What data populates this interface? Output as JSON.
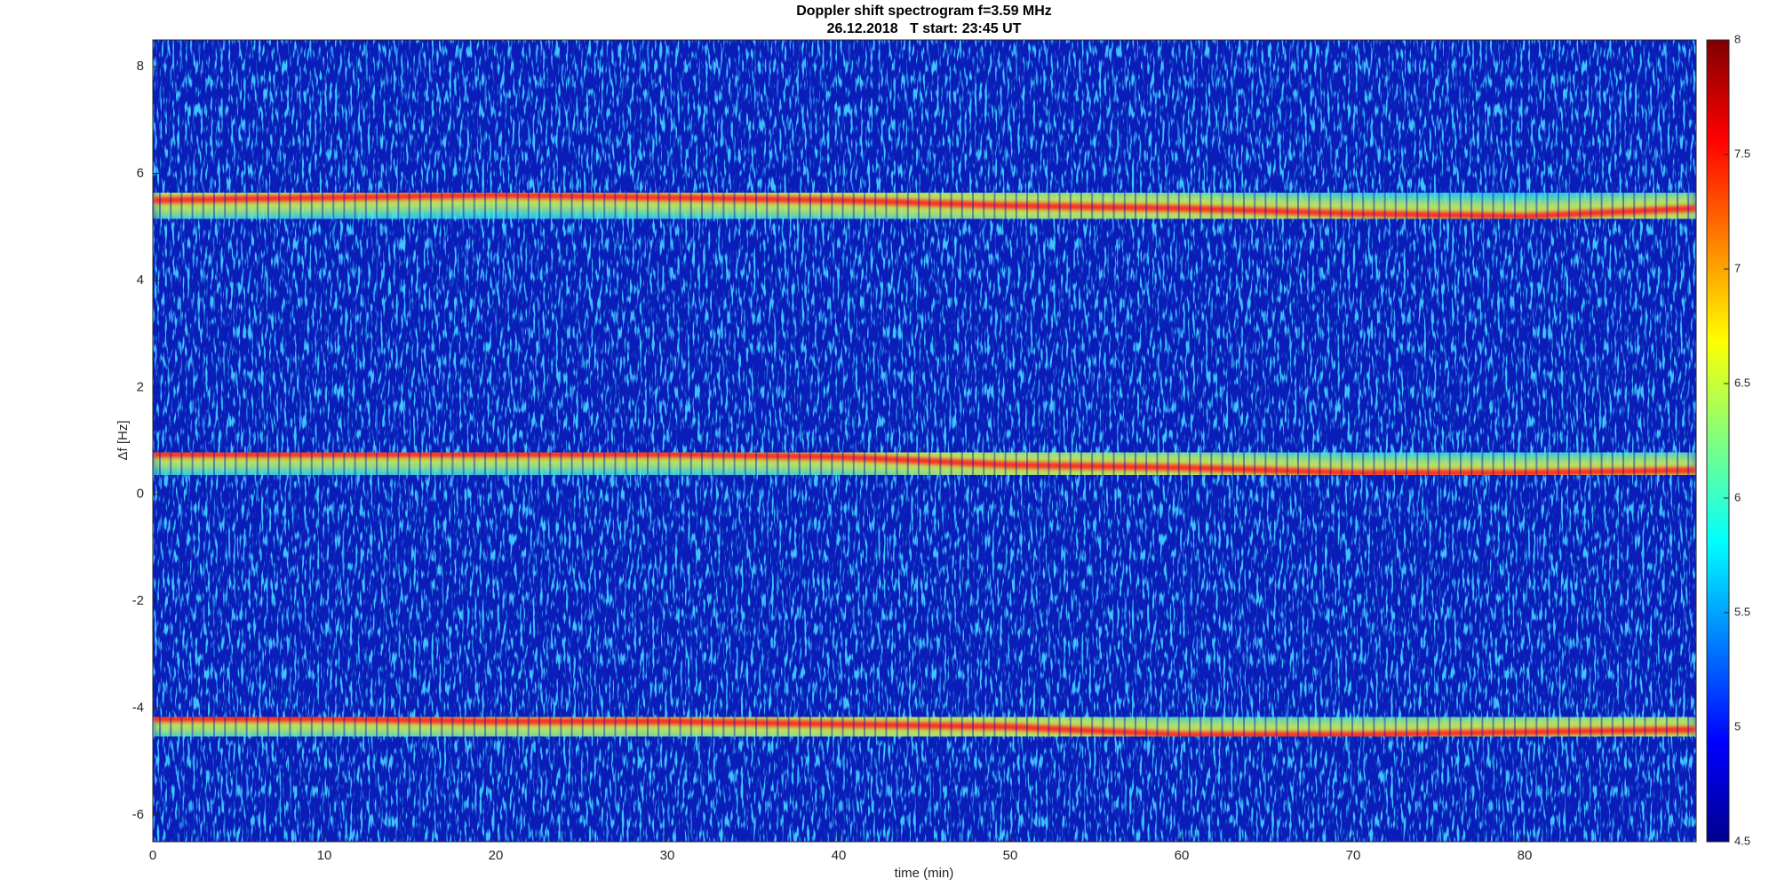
{
  "chart_data": {
    "type": "spectrogram",
    "title": "Doppler shift spectrogram f=3.59 MHz",
    "subtitle": "26.12.2018   T start: 23:45 UT",
    "x_label": "time (min)",
    "y_label": "Δf [Hz]",
    "x": [
      0,
      10,
      20,
      30,
      40,
      50,
      60,
      70,
      80,
      90
    ],
    "series": [
      {
        "color": "#ff2020",
        "values": [
          5.5,
          5.55,
          5.6,
          5.55,
          5.5,
          5.4,
          5.35,
          5.25,
          5.2,
          5.35
        ]
      },
      {
        "color": "#ff2020",
        "values": [
          0.75,
          0.75,
          0.75,
          0.75,
          0.7,
          0.55,
          0.5,
          0.4,
          0.4,
          0.45
        ]
      },
      {
        "color": "#ff2020",
        "values": [
          -4.2,
          -4.2,
          -4.25,
          -4.25,
          -4.3,
          -4.35,
          -4.5,
          -4.5,
          -4.45,
          -4.4
        ]
      }
    ],
    "xlim": [
      0,
      90
    ],
    "xticks": [
      0,
      10,
      20,
      30,
      40,
      50,
      60,
      70,
      80
    ],
    "ylim": [
      -6.5,
      8.5
    ],
    "yticks": [
      -6,
      -4,
      -2,
      0,
      2,
      4,
      6,
      8
    ],
    "colormap": "jet",
    "clim": [
      4.5,
      8
    ],
    "cticks": [
      4.5,
      5,
      5.5,
      6,
      6.5,
      7,
      7.5,
      8
    ]
  }
}
